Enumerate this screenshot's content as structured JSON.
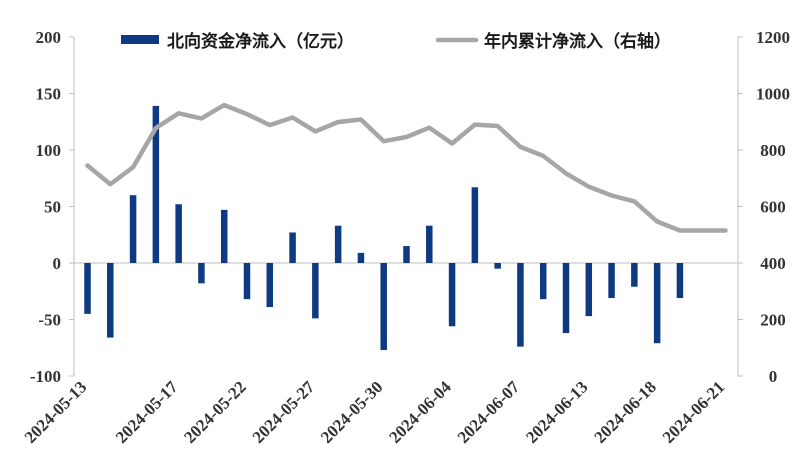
{
  "chart_data": {
    "type": "bar+line",
    "categories": [
      "2024-05-13",
      "2024-05-14",
      "2024-05-15",
      "2024-05-16",
      "2024-05-17",
      "2024-05-20",
      "2024-05-21",
      "2024-05-22",
      "2024-05-23",
      "2024-05-24",
      "2024-05-27",
      "2024-05-28",
      "2024-05-29",
      "2024-05-30",
      "2024-05-31",
      "2024-06-03",
      "2024-06-04",
      "2024-06-05",
      "2024-06-06",
      "2024-06-07",
      "2024-06-11",
      "2024-06-12",
      "2024-06-13",
      "2024-06-14",
      "2024-06-17",
      "2024-06-18",
      "2024-06-19",
      "2024-06-20",
      "2024-06-21"
    ],
    "x_tick_labels": [
      "2024-05-13",
      "2024-05-17",
      "2024-05-22",
      "2024-05-27",
      "2024-05-30",
      "2024-06-04",
      "2024-06-07",
      "2024-06-13",
      "2024-06-18",
      "2024-06-21"
    ],
    "series": [
      {
        "name": "北向资金净流入（亿元）",
        "type": "bar",
        "axis": "left",
        "color": "#0d3a80",
        "values": [
          -45,
          -66,
          60,
          139,
          52,
          -18,
          47,
          -32,
          -39,
          27,
          -49,
          33,
          9,
          -77,
          15,
          33,
          -56,
          67,
          -5,
          -74,
          -32,
          -62,
          -47,
          -31,
          -21,
          -71,
          -31,
          0,
          0
        ]
      },
      {
        "name": "年内累计净流入（右轴）",
        "type": "line",
        "axis": "right",
        "color": "#a6a6a6",
        "values": [
          745,
          679,
          739,
          878,
          930,
          912,
          959,
          927,
          888,
          915,
          866,
          899,
          908,
          831,
          846,
          879,
          823,
          890,
          885,
          811,
          779,
          717,
          670,
          639,
          618,
          547,
          515,
          515,
          515
        ]
      }
    ],
    "ylim_left": [
      -100,
      200
    ],
    "yticks_left": [
      -100,
      -50,
      0,
      50,
      100,
      150,
      200
    ],
    "ylim_right": [
      0,
      1200
    ],
    "yticks_right": [
      0,
      200,
      400,
      600,
      800,
      1000,
      1200
    ],
    "legend_position": "top",
    "grid": false
  }
}
